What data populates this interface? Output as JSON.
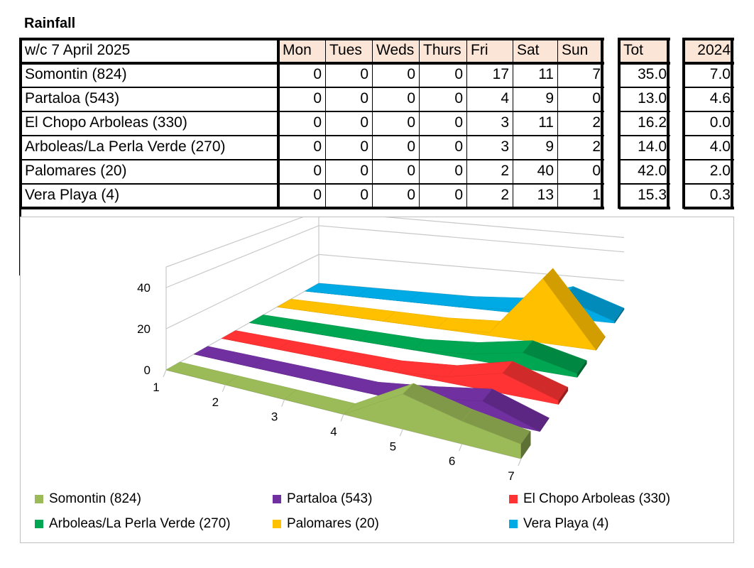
{
  "title": "Rainfall",
  "table": {
    "header": [
      "w/c 7 April  2025",
      "Mon",
      "Tues",
      "Weds",
      "Thurs",
      "Fri",
      "Sat",
      "Sun",
      "Tot",
      "2024"
    ],
    "rows": [
      {
        "label": "Somontin (824)",
        "days": [
          "0",
          "0",
          "0",
          "0",
          "17",
          "11",
          "7"
        ],
        "tot": "35.0",
        "prev": "7.0"
      },
      {
        "label": "Partaloa (543)",
        "days": [
          "0",
          "0",
          "0",
          "0",
          "4",
          "9",
          "0"
        ],
        "tot": "13.0",
        "prev": "4.6"
      },
      {
        "label": "El Chopo Arboleas (330)",
        "days": [
          "0",
          "0",
          "0",
          "0",
          "3",
          "11",
          "2"
        ],
        "tot": "16.2",
        "prev": "0.0"
      },
      {
        "label": "Arboleas/La Perla Verde (270)",
        "days": [
          "0",
          "0",
          "0",
          "0",
          "3",
          "9",
          "2"
        ],
        "tot": "14.0",
        "prev": "4.0"
      },
      {
        "label": "Palomares (20)",
        "days": [
          "0",
          "0",
          "0",
          "0",
          "2",
          "40",
          "0"
        ],
        "tot": "42.0",
        "prev": "2.0"
      },
      {
        "label": "Vera Playa (4)",
        "days": [
          "0",
          "0",
          "0",
          "0",
          "2",
          "13",
          "1"
        ],
        "tot": "15.3",
        "prev": "0.3"
      }
    ]
  },
  "chart_data": {
    "type": "area",
    "x": [
      1,
      2,
      3,
      4,
      5,
      6,
      7
    ],
    "y_ticks": [
      "0",
      "20",
      "40"
    ],
    "ylim": [
      0,
      50
    ],
    "grid": true,
    "legend_position": "bottom",
    "series": [
      {
        "name": "Somontin (824)",
        "values": [
          0,
          0,
          0,
          0,
          17,
          11,
          7
        ],
        "color": "#9bbb59"
      },
      {
        "name": "Partaloa (543)",
        "values": [
          0,
          0,
          0,
          0,
          4,
          9,
          0
        ],
        "color": "#7030a0"
      },
      {
        "name": "El Chopo Arboleas (330)",
        "values": [
          0,
          0,
          0,
          0,
          3,
          11,
          2
        ],
        "color": "#ff3333"
      },
      {
        "name": "Arboleas/La Perla Verde (270)",
        "values": [
          0,
          0,
          0,
          0,
          3,
          9,
          2
        ],
        "color": "#00a651"
      },
      {
        "name": "Palomares (20)",
        "values": [
          0,
          0,
          0,
          0,
          2,
          40,
          0
        ],
        "color": "#ffc000"
      },
      {
        "name": "Vera Playa (4)",
        "values": [
          0,
          0,
          0,
          0,
          2,
          13,
          1
        ],
        "color": "#00aae4"
      }
    ]
  }
}
